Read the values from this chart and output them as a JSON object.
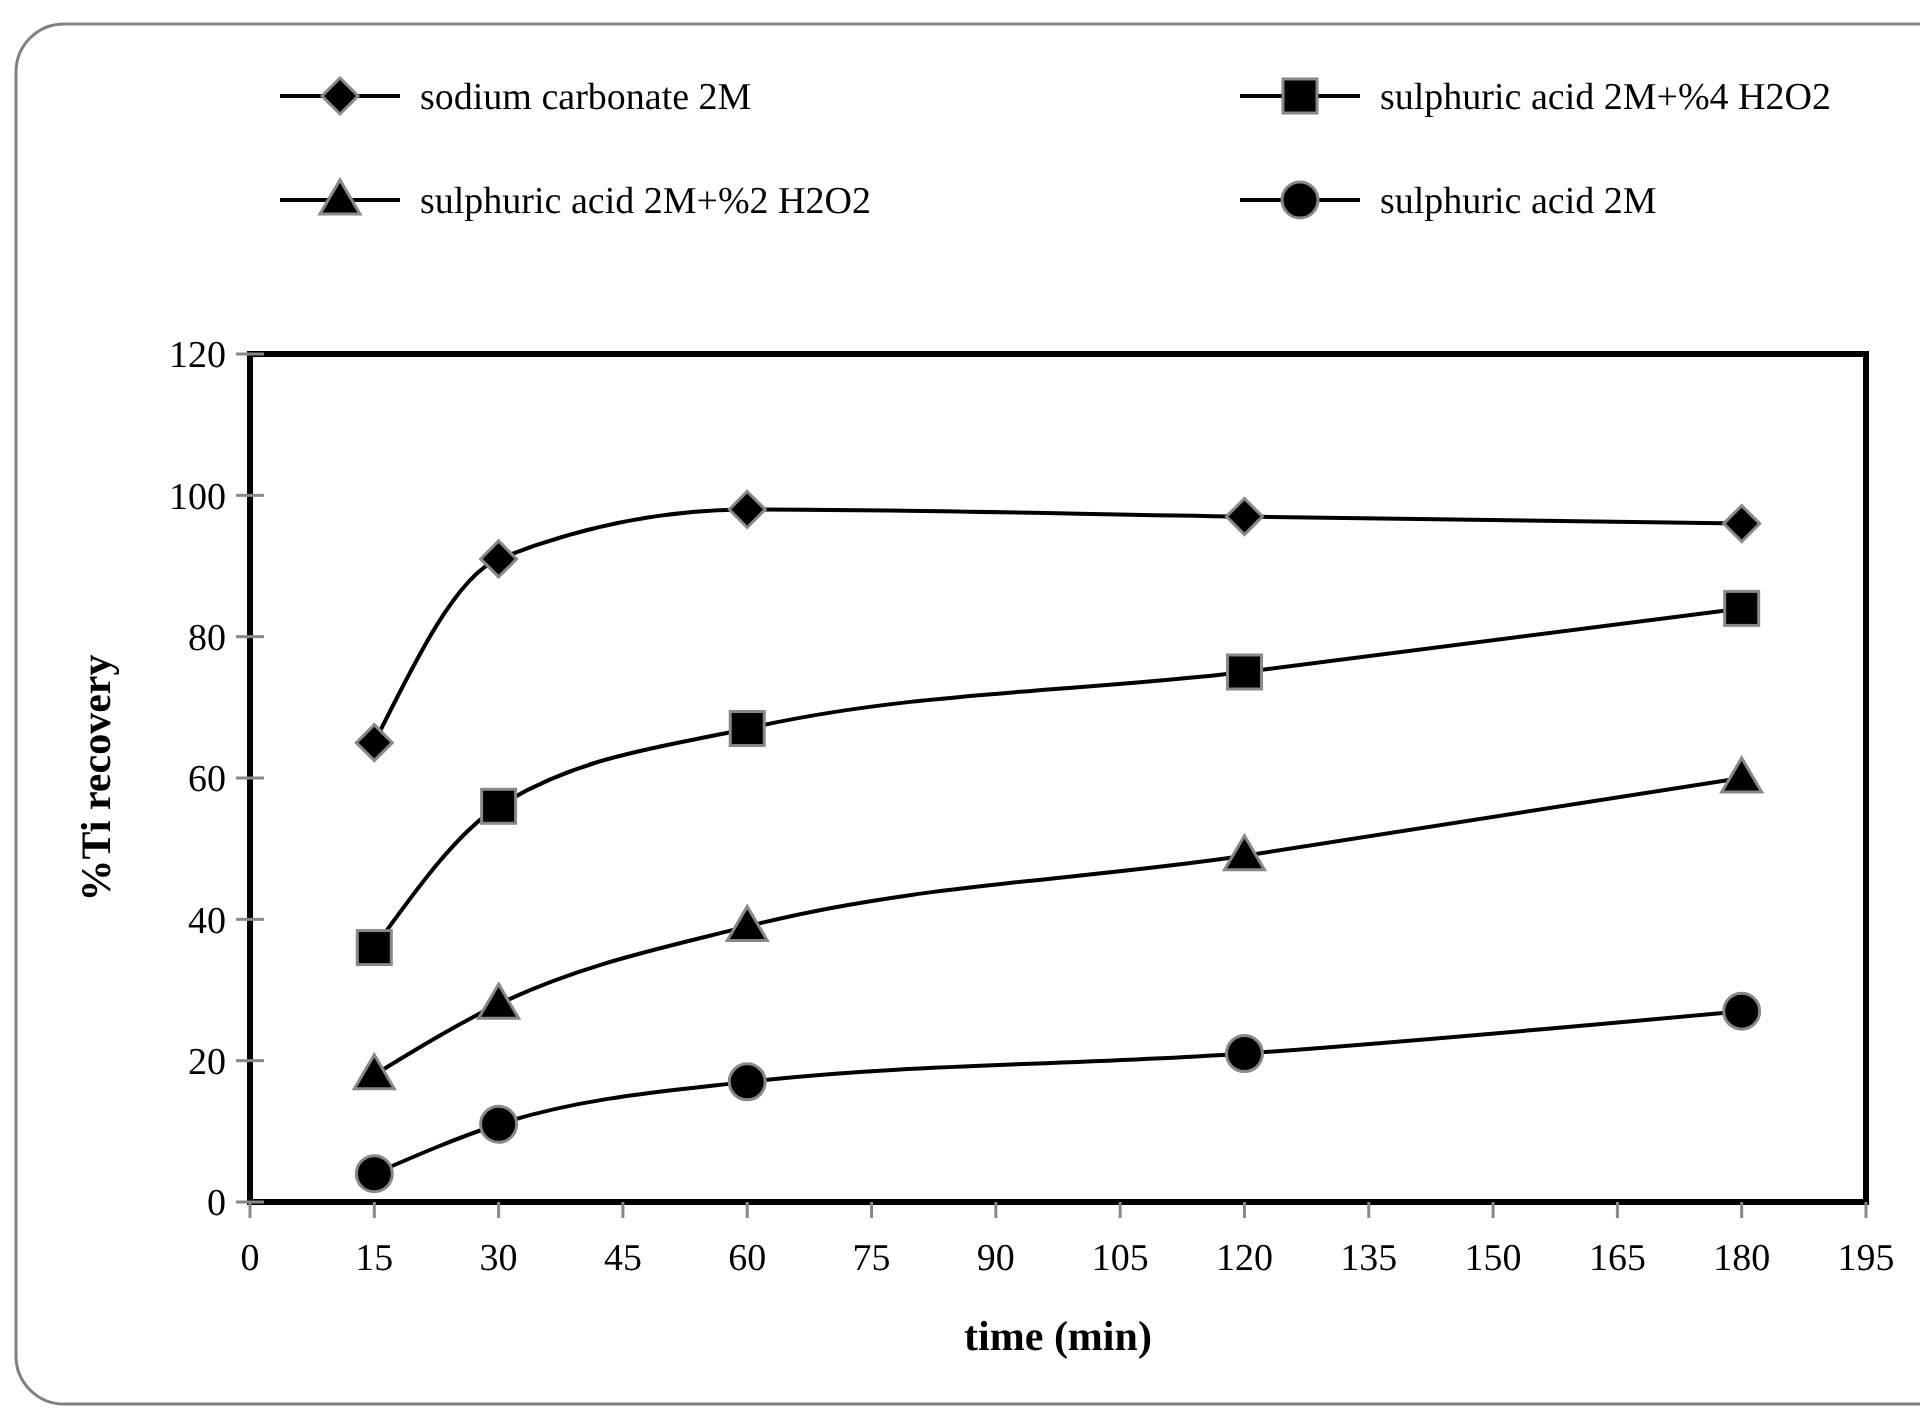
{
  "chart_data": {
    "type": "line",
    "xlabel": "time (min)",
    "ylabel": "%Ti recovery",
    "x": [
      15,
      30,
      60,
      120,
      180
    ],
    "series": [
      {
        "name": "sodium carbonate 2M",
        "color": "#000000",
        "marker": "diamond",
        "values": [
          65,
          91,
          98,
          97,
          96
        ]
      },
      {
        "name": "sulphuric acid 2M+%4 H2O2",
        "color": "#000000",
        "marker": "square",
        "values": [
          36,
          56,
          67,
          75,
          84
        ]
      },
      {
        "name": "sulphuric acid 2M+%2 H2O2",
        "color": "#000000",
        "marker": "triangle",
        "values": [
          18,
          28,
          39,
          49,
          60
        ]
      },
      {
        "name": "sulphuric acid 2M",
        "color": "#000000",
        "marker": "circle",
        "values": [
          4,
          11,
          17,
          21,
          27
        ]
      }
    ],
    "xlim": [
      0,
      195
    ],
    "xticks": [
      0,
      15,
      30,
      45,
      60,
      75,
      90,
      105,
      120,
      135,
      150,
      165,
      180,
      195
    ],
    "ylim": [
      0,
      120
    ],
    "yticks": [
      0,
      20,
      40,
      60,
      80,
      100,
      120
    ],
    "legend": "top",
    "grid": false,
    "line_style": "solid"
  }
}
